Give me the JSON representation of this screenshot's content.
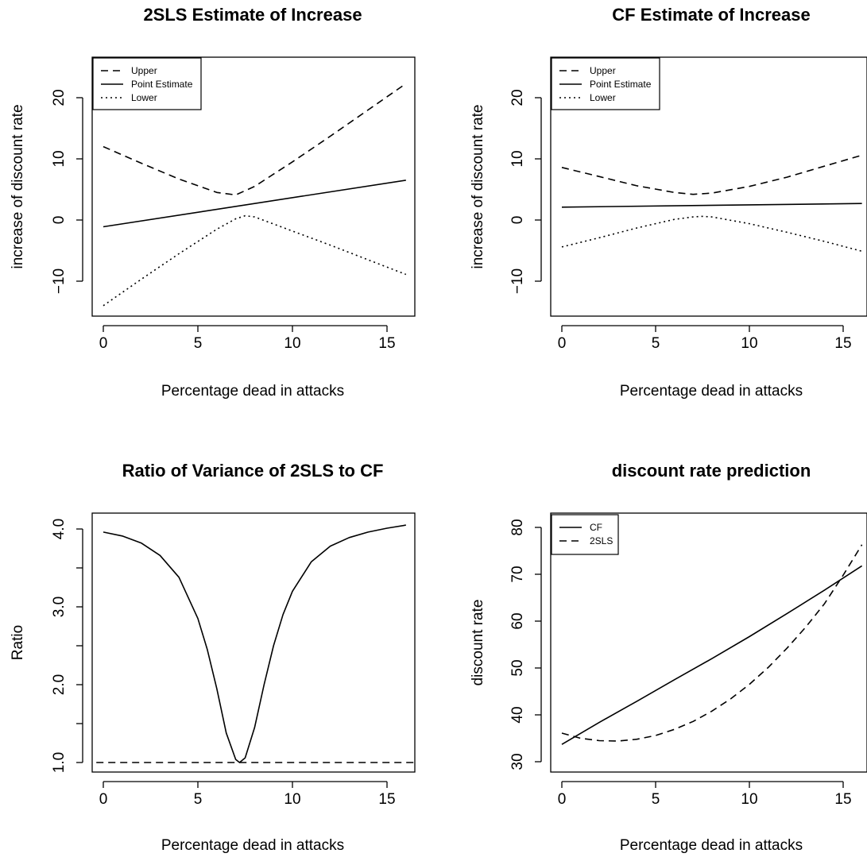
{
  "chart_data": [
    {
      "type": "line",
      "title": "2SLS Estimate of Increase",
      "xlabel": "Percentage dead in attacks",
      "ylabel": "increase of discount rate",
      "xlim": [
        0,
        16
      ],
      "ylim": [
        -15,
        25
      ],
      "xticks": [
        "0",
        "5",
        "10",
        "15"
      ],
      "yticks": [
        "−10",
        "0",
        "10",
        "20"
      ],
      "legend_position": "top-left",
      "series": [
        {
          "name": "Upper",
          "style": "dashed",
          "x": [
            0,
            2,
            4,
            6,
            7,
            8,
            10,
            12,
            14,
            16
          ],
          "y": [
            12,
            9.3,
            6.7,
            4.5,
            4.1,
            5.5,
            9.5,
            13.7,
            18.0,
            22.3
          ]
        },
        {
          "name": "Point Estimate",
          "style": "solid",
          "x": [
            0,
            16
          ],
          "y": [
            -1.1,
            6.5
          ]
        },
        {
          "name": "Lower",
          "style": "dotted",
          "x": [
            0,
            2,
            4,
            6,
            7,
            7.5,
            8,
            10,
            12,
            14,
            16
          ],
          "y": [
            -14.0,
            -9.7,
            -5.5,
            -1.5,
            0.2,
            0.7,
            0.5,
            -1.8,
            -4.1,
            -6.5,
            -8.9
          ]
        }
      ]
    },
    {
      "type": "line",
      "title": "CF Estimate of Increase",
      "xlabel": "Percentage dead in attacks",
      "ylabel": "increase of discount rate",
      "xlim": [
        0,
        16
      ],
      "ylim": [
        -15,
        25
      ],
      "xticks": [
        "0",
        "5",
        "10",
        "15"
      ],
      "yticks": [
        "−10",
        "0",
        "10",
        "20"
      ],
      "legend_position": "top-left",
      "series": [
        {
          "name": "Upper",
          "style": "dashed",
          "x": [
            0,
            2,
            4,
            6,
            7,
            8,
            10,
            12,
            14,
            16
          ],
          "y": [
            8.6,
            7.1,
            5.6,
            4.5,
            4.2,
            4.4,
            5.5,
            7.0,
            8.8,
            10.6
          ]
        },
        {
          "name": "Point Estimate",
          "style": "solid",
          "x": [
            0,
            16
          ],
          "y": [
            2.1,
            2.7
          ]
        },
        {
          "name": "Lower",
          "style": "dotted",
          "x": [
            0,
            2,
            4,
            6,
            7,
            7.5,
            8,
            10,
            12,
            14,
            16
          ],
          "y": [
            -4.4,
            -2.9,
            -1.3,
            0.1,
            0.5,
            0.6,
            0.5,
            -0.6,
            -2.0,
            -3.5,
            -5.1
          ]
        }
      ]
    },
    {
      "type": "line",
      "title": "Ratio of Variance of 2SLS to CF",
      "xlabel": "Percentage dead in attacks",
      "ylabel": "Ratio",
      "xlim": [
        0,
        16
      ],
      "ylim": [
        0.88,
        4.12
      ],
      "xticks": [
        "0",
        "5",
        "10",
        "15"
      ],
      "yticks": [
        "1.0",
        "2.0",
        "3.0",
        "4.0"
      ],
      "series": [
        {
          "style": "solid",
          "x": [
            0,
            1,
            2,
            3,
            4,
            5,
            5.5,
            6,
            6.5,
            7,
            7.2,
            7.5,
            8,
            8.5,
            9,
            9.5,
            10,
            11,
            12,
            13,
            14,
            15,
            16
          ],
          "y": [
            3.96,
            3.91,
            3.82,
            3.66,
            3.38,
            2.85,
            2.45,
            1.95,
            1.38,
            1.04,
            1.0,
            1.06,
            1.45,
            2.0,
            2.5,
            2.9,
            3.2,
            3.58,
            3.78,
            3.89,
            3.96,
            4.01,
            4.05
          ]
        },
        {
          "style": "dashed",
          "x": [
            -1,
            17
          ],
          "y": [
            1.0,
            1.0
          ]
        }
      ]
    },
    {
      "type": "line",
      "title": "discount rate prediction",
      "xlabel": "Percentage dead in attacks",
      "ylabel": "discount rate",
      "xlim": [
        0,
        16
      ],
      "ylim": [
        29,
        81
      ],
      "xticks": [
        "0",
        "5",
        "10",
        "15"
      ],
      "yticks": [
        "30",
        "40",
        "50",
        "60",
        "70",
        "80"
      ],
      "legend_position": "top-left",
      "series": [
        {
          "name": "CF",
          "style": "solid",
          "x": [
            0,
            2,
            4,
            6,
            8,
            10,
            12,
            14,
            16
          ],
          "y": [
            33.7,
            38.4,
            42.9,
            47.5,
            52.0,
            56.7,
            61.6,
            66.6,
            71.8
          ]
        },
        {
          "name": "2SLS",
          "style": "dashed",
          "x": [
            0,
            1,
            2,
            3,
            4,
            5,
            6,
            7,
            8,
            9,
            10,
            11,
            12,
            13,
            14,
            15,
            16
          ],
          "y": [
            36.1,
            35.0,
            34.5,
            34.4,
            34.8,
            35.6,
            36.9,
            38.6,
            40.8,
            43.4,
            46.5,
            50.1,
            54.2,
            58.7,
            63.7,
            69.8,
            76.3
          ]
        }
      ]
    }
  ]
}
